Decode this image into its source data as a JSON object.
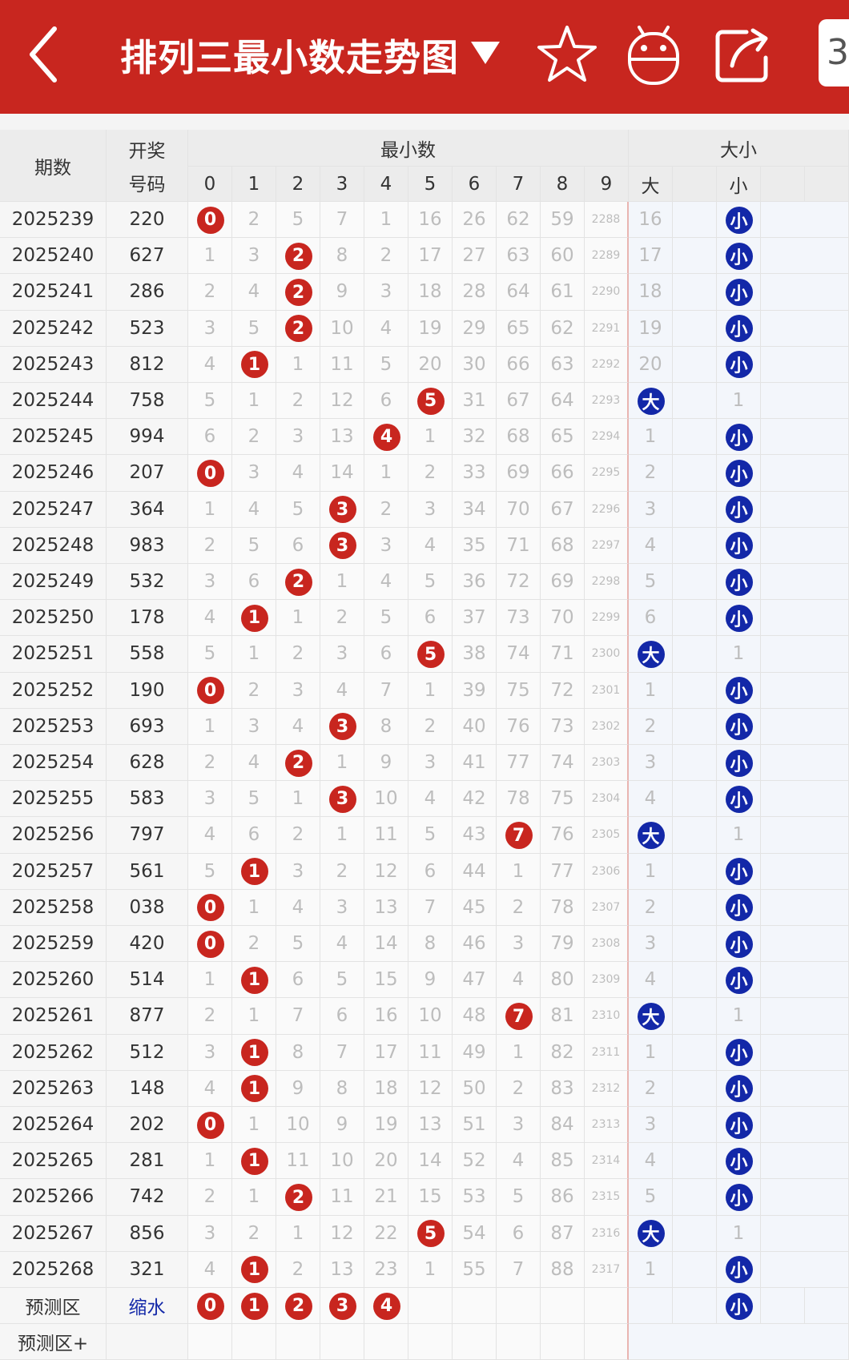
{
  "header": {
    "title": "排列三最小数走势图",
    "side_label": "3",
    "colors": {
      "bar": "#c8261f",
      "ball_red": "#c8261f",
      "ball_blue": "#1328a8",
      "trend_arrow": "#4caf50"
    },
    "icons": [
      "back-arrow-icon",
      "dropdown-triangle-icon",
      "star-icon",
      "robot-icon",
      "share-icon"
    ]
  },
  "table": {
    "col_issue": "期数",
    "col_draw_1": "开奖",
    "col_draw_2": "号码",
    "group_min": "最小数",
    "group_size": "大小",
    "digits": [
      "0",
      "1",
      "2",
      "3",
      "4",
      "5",
      "6",
      "7",
      "8",
      "9"
    ],
    "size_labels": [
      "大",
      "",
      "小",
      ""
    ],
    "rows": [
      {
        "issue": "2025239",
        "draw": "220",
        "min": 0,
        "miss": [
          0,
          2,
          5,
          7,
          1,
          16,
          26,
          62,
          59,
          2288
        ],
        "size": "小",
        "big_miss": 16,
        "small_miss": 0
      },
      {
        "issue": "2025240",
        "draw": "627",
        "min": 2,
        "miss": [
          1,
          3,
          0,
          8,
          2,
          17,
          27,
          63,
          60,
          2289
        ],
        "size": "小",
        "big_miss": 17,
        "small_miss": 0
      },
      {
        "issue": "2025241",
        "draw": "286",
        "min": 2,
        "miss": [
          2,
          4,
          0,
          9,
          3,
          18,
          28,
          64,
          61,
          2290
        ],
        "size": "小",
        "big_miss": 18,
        "small_miss": 0
      },
      {
        "issue": "2025242",
        "draw": "523",
        "min": 2,
        "miss": [
          3,
          5,
          0,
          10,
          4,
          19,
          29,
          65,
          62,
          2291
        ],
        "size": "小",
        "big_miss": 19,
        "small_miss": 0
      },
      {
        "issue": "2025243",
        "draw": "812",
        "min": 1,
        "miss": [
          4,
          0,
          1,
          11,
          5,
          20,
          30,
          66,
          63,
          2292
        ],
        "size": "小",
        "big_miss": 20,
        "small_miss": 0
      },
      {
        "issue": "2025244",
        "draw": "758",
        "min": 5,
        "miss": [
          5,
          1,
          2,
          12,
          6,
          0,
          31,
          67,
          64,
          2293
        ],
        "size": "大",
        "big_miss": 0,
        "small_miss": 1
      },
      {
        "issue": "2025245",
        "draw": "994",
        "min": 4,
        "miss": [
          6,
          2,
          3,
          13,
          0,
          1,
          32,
          68,
          65,
          2294
        ],
        "size": "小",
        "big_miss": 1,
        "small_miss": 0
      },
      {
        "issue": "2025246",
        "draw": "207",
        "min": 0,
        "miss": [
          0,
          3,
          4,
          14,
          1,
          2,
          33,
          69,
          66,
          2295
        ],
        "size": "小",
        "big_miss": 2,
        "small_miss": 0
      },
      {
        "issue": "2025247",
        "draw": "364",
        "min": 3,
        "miss": [
          1,
          4,
          5,
          0,
          2,
          3,
          34,
          70,
          67,
          2296
        ],
        "size": "小",
        "big_miss": 3,
        "small_miss": 0
      },
      {
        "issue": "2025248",
        "draw": "983",
        "min": 3,
        "miss": [
          2,
          5,
          6,
          0,
          3,
          4,
          35,
          71,
          68,
          2297
        ],
        "size": "小",
        "big_miss": 4,
        "small_miss": 0
      },
      {
        "issue": "2025249",
        "draw": "532",
        "min": 2,
        "miss": [
          3,
          6,
          0,
          1,
          4,
          5,
          36,
          72,
          69,
          2298
        ],
        "size": "小",
        "big_miss": 5,
        "small_miss": 0
      },
      {
        "issue": "2025250",
        "draw": "178",
        "min": 1,
        "miss": [
          4,
          0,
          1,
          2,
          5,
          6,
          37,
          73,
          70,
          2299
        ],
        "size": "小",
        "big_miss": 6,
        "small_miss": 0
      },
      {
        "issue": "2025251",
        "draw": "558",
        "min": 5,
        "miss": [
          5,
          1,
          2,
          3,
          6,
          0,
          38,
          74,
          71,
          2300
        ],
        "size": "大",
        "big_miss": 0,
        "small_miss": 1
      },
      {
        "issue": "2025252",
        "draw": "190",
        "min": 0,
        "miss": [
          0,
          2,
          3,
          4,
          7,
          1,
          39,
          75,
          72,
          2301
        ],
        "size": "小",
        "big_miss": 1,
        "small_miss": 0
      },
      {
        "issue": "2025253",
        "draw": "693",
        "min": 3,
        "miss": [
          1,
          3,
          4,
          0,
          8,
          2,
          40,
          76,
          73,
          2302
        ],
        "size": "小",
        "big_miss": 2,
        "small_miss": 0
      },
      {
        "issue": "2025254",
        "draw": "628",
        "min": 2,
        "miss": [
          2,
          4,
          0,
          1,
          9,
          3,
          41,
          77,
          74,
          2303
        ],
        "size": "小",
        "big_miss": 3,
        "small_miss": 0
      },
      {
        "issue": "2025255",
        "draw": "583",
        "min": 3,
        "miss": [
          3,
          5,
          1,
          0,
          10,
          4,
          42,
          78,
          75,
          2304
        ],
        "size": "小",
        "big_miss": 4,
        "small_miss": 0
      },
      {
        "issue": "2025256",
        "draw": "797",
        "min": 7,
        "miss": [
          4,
          6,
          2,
          1,
          11,
          5,
          43,
          0,
          76,
          2305
        ],
        "size": "大",
        "big_miss": 0,
        "small_miss": 1
      },
      {
        "issue": "2025257",
        "draw": "561",
        "min": 1,
        "miss": [
          5,
          0,
          3,
          2,
          12,
          6,
          44,
          1,
          77,
          2306
        ],
        "size": "小",
        "big_miss": 1,
        "small_miss": 0
      },
      {
        "issue": "2025258",
        "draw": "038",
        "min": 0,
        "miss": [
          0,
          1,
          4,
          3,
          13,
          7,
          45,
          2,
          78,
          2307
        ],
        "size": "小",
        "big_miss": 2,
        "small_miss": 0
      },
      {
        "issue": "2025259",
        "draw": "420",
        "min": 0,
        "miss": [
          0,
          2,
          5,
          4,
          14,
          8,
          46,
          3,
          79,
          2308
        ],
        "size": "小",
        "big_miss": 3,
        "small_miss": 0
      },
      {
        "issue": "2025260",
        "draw": "514",
        "min": 1,
        "miss": [
          1,
          0,
          6,
          5,
          15,
          9,
          47,
          4,
          80,
          2309
        ],
        "size": "小",
        "big_miss": 4,
        "small_miss": 0
      },
      {
        "issue": "2025261",
        "draw": "877",
        "min": 7,
        "miss": [
          2,
          1,
          7,
          6,
          16,
          10,
          48,
          0,
          81,
          2310
        ],
        "size": "大",
        "big_miss": 0,
        "small_miss": 1
      },
      {
        "issue": "2025262",
        "draw": "512",
        "min": 1,
        "miss": [
          3,
          0,
          8,
          7,
          17,
          11,
          49,
          1,
          82,
          2311
        ],
        "size": "小",
        "big_miss": 1,
        "small_miss": 0
      },
      {
        "issue": "2025263",
        "draw": "148",
        "min": 1,
        "miss": [
          4,
          0,
          9,
          8,
          18,
          12,
          50,
          2,
          83,
          2312
        ],
        "size": "小",
        "big_miss": 2,
        "small_miss": 0
      },
      {
        "issue": "2025264",
        "draw": "202",
        "min": 0,
        "miss": [
          0,
          1,
          10,
          9,
          19,
          13,
          51,
          3,
          84,
          2313
        ],
        "size": "小",
        "big_miss": 3,
        "small_miss": 0
      },
      {
        "issue": "2025265",
        "draw": "281",
        "min": 1,
        "miss": [
          1,
          0,
          11,
          10,
          20,
          14,
          52,
          4,
          85,
          2314
        ],
        "size": "小",
        "big_miss": 4,
        "small_miss": 0
      },
      {
        "issue": "2025266",
        "draw": "742",
        "min": 2,
        "miss": [
          2,
          1,
          0,
          11,
          21,
          15,
          53,
          5,
          86,
          2315
        ],
        "size": "小",
        "big_miss": 5,
        "small_miss": 0
      },
      {
        "issue": "2025267",
        "draw": "856",
        "min": 5,
        "miss": [
          3,
          2,
          1,
          12,
          22,
          0,
          54,
          6,
          87,
          2316
        ],
        "size": "大",
        "big_miss": 0,
        "small_miss": 1
      },
      {
        "issue": "2025268",
        "draw": "321",
        "min": 1,
        "miss": [
          4,
          0,
          2,
          13,
          23,
          1,
          55,
          7,
          88,
          2317
        ],
        "size": "小",
        "big_miss": 1,
        "small_miss": 0
      }
    ],
    "predict": {
      "label": "预测区",
      "draw_label": "缩水",
      "draw_color": "#1328a8",
      "balls": [
        "0",
        "1",
        "2",
        "3",
        "4"
      ],
      "size": "小"
    },
    "predict_plus": {
      "label": "预测区+"
    }
  }
}
